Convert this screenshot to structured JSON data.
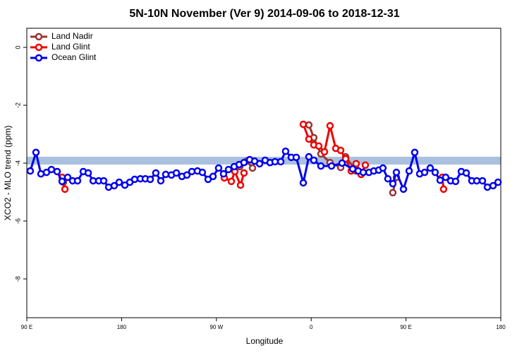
{
  "chart_data": {
    "type": "line",
    "title": "5N-10N November (Ver 9)   2014-09-06 to 2018-12-31",
    "xlabel": "Longitude",
    "ylabel": "XCO2 - MLO trend (ppm)",
    "xlim": [
      90,
      540
    ],
    "xticks": [
      {
        "value": 90,
        "label": "90 E"
      },
      {
        "value": 180,
        "label": "180"
      },
      {
        "value": 270,
        "label": "90 W"
      },
      {
        "value": 360,
        "label": "0"
      },
      {
        "value": 450,
        "label": "90 E"
      },
      {
        "value": 540,
        "label": "180"
      }
    ],
    "ylim": [
      -9.34,
      0.66
    ],
    "yticks": [
      0,
      -2,
      -4,
      -6,
      -8
    ],
    "band": [
      -4.05,
      -3.78
    ],
    "band_color": "#a9c1de",
    "legend": "top-left",
    "series": [
      {
        "name": "Land Nadir",
        "color": "#993333",
        "x": [
          124.8,
          200,
          292.2,
          298.9,
          304.3,
          330,
          357.8,
          362.5,
          369.2,
          377.9,
          388.0,
          392.7,
          402.7,
          420,
          437.5,
          440.9
        ],
        "values": [
          -4.66,
          null,
          -4.12,
          -3.93,
          -4.17,
          null,
          -2.68,
          -3.12,
          -3.68,
          -3.98,
          -4.15,
          -3.78,
          -4.27,
          null,
          -5.02,
          -4.49
        ]
      },
      {
        "name": "Land Glint",
        "color": "#ee0000",
        "x": [
          123.5,
          126.2,
          200,
          277.5,
          284.2,
          287.5,
          292.9,
          296.2,
          330,
          352.5,
          357.8,
          362.5,
          367.2,
          372.6,
          377.9,
          383.3,
          388.0,
          392.7,
          398.0,
          402.7,
          407.4,
          411.4,
          450,
          484.4,
          485.7
        ],
        "values": [
          -4.49,
          -4.9,
          null,
          -4.51,
          -4.63,
          -4.29,
          -4.76,
          -4.34,
          null,
          -2.66,
          -3.17,
          -3.37,
          -3.41,
          -3.61,
          -2.71,
          -3.49,
          -3.56,
          -3.85,
          -4.27,
          -4.02,
          -4.39,
          -4.07,
          null,
          -4.49,
          -4.9
        ]
      },
      {
        "name": "Ocean Glint",
        "color": "#0000ee",
        "x": [
          93.3,
          98.7,
          103.4,
          108.7,
          113.4,
          118.8,
          123.5,
          128.8,
          133.5,
          138.2,
          143.6,
          148.3,
          153.0,
          158.3,
          163.0,
          167.7,
          173.0,
          177.7,
          183.1,
          187.8,
          192.4,
          197.8,
          202.5,
          207.2,
          212.5,
          217.2,
          221.9,
          227.3,
          232.0,
          237.3,
          242.0,
          246.7,
          252.0,
          256.7,
          262.1,
          266.8,
          272.1,
          276.8,
          281.5,
          286.9,
          291.6,
          296.2,
          301.6,
          306.3,
          311.0,
          316.3,
          321.0,
          325.7,
          331.1,
          335.7,
          341.1,
          345.8,
          352.5,
          357.8,
          362.5,
          369.2,
          379.3,
          389.3,
          399.4,
          404.7,
          409.4,
          414.8,
          419.4,
          424.1,
          428.1,
          432.8,
          437.5,
          440.9,
          447.6,
          453.0,
          458.3,
          463.0,
          467.7,
          473.0,
          477.7,
          482.4,
          487.7,
          492.4,
          497.1,
          502.5,
          507.2,
          512.5,
          517.2,
          522.6,
          527.3,
          532.7,
          537.4
        ],
        "values": [
          -4.27,
          -3.63,
          -4.37,
          -4.32,
          -4.22,
          -4.29,
          -4.63,
          -4.49,
          -4.61,
          -4.61,
          -4.29,
          -4.34,
          -4.61,
          -4.61,
          -4.61,
          -4.83,
          -4.78,
          -4.66,
          -4.76,
          -4.66,
          -4.56,
          -4.54,
          -4.54,
          -4.56,
          -4.34,
          -4.61,
          -4.39,
          -4.41,
          -4.34,
          -4.46,
          -4.41,
          -4.29,
          -4.27,
          -4.32,
          -4.56,
          -4.46,
          -4.17,
          -4.37,
          -4.22,
          -4.12,
          -4.05,
          -3.98,
          -3.88,
          -3.93,
          -4.02,
          -3.9,
          -3.98,
          -3.95,
          -3.95,
          -3.59,
          -3.8,
          -3.8,
          -4.68,
          -3.78,
          -3.9,
          -4.1,
          -4.1,
          -4.0,
          -4.2,
          -4.27,
          -4.32,
          -4.32,
          -4.27,
          -4.24,
          -4.17,
          -4.54,
          -4.71,
          -4.32,
          -4.9,
          -4.27,
          -3.63,
          -4.37,
          -4.32,
          -4.17,
          -4.32,
          -4.59,
          -4.49,
          -4.61,
          -4.63,
          -4.29,
          -4.34,
          -4.61,
          -4.61,
          -4.61,
          -4.83,
          -4.78,
          -4.66
        ]
      }
    ]
  }
}
